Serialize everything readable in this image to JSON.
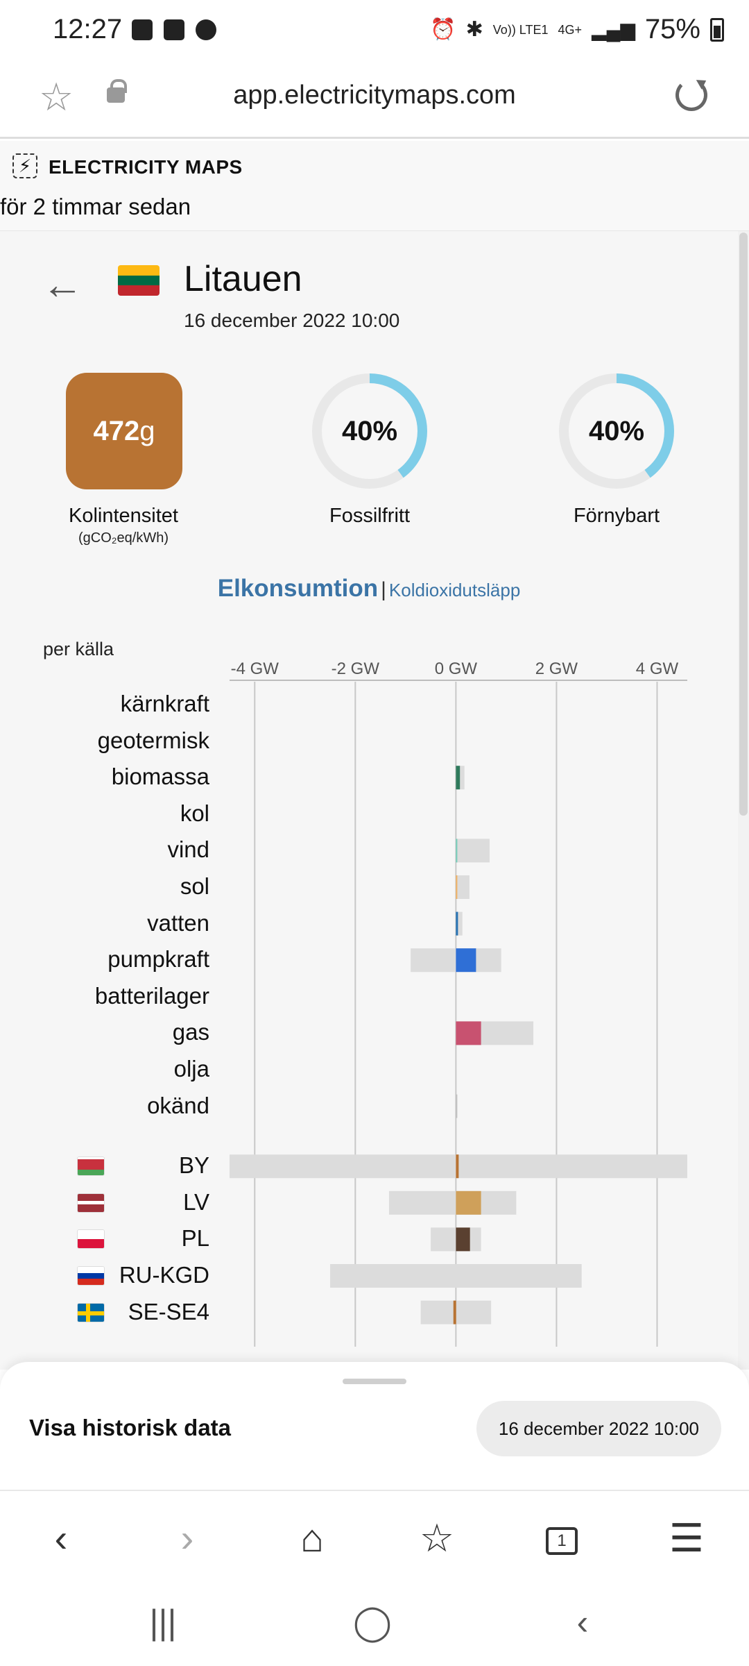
{
  "status_bar": {
    "time": "12:27",
    "network": "Vo)) LTE1",
    "network_type": "4G+",
    "battery": "75%"
  },
  "url_bar": {
    "url": "app.electricitymaps.com"
  },
  "app_header": {
    "brand": "ELECTRICITY MAPS",
    "updated": "för 2 timmar sedan"
  },
  "zone": {
    "name": "Litauen",
    "datetime": "16 december 2022 10:00",
    "flag_colors": [
      "#FDB913",
      "#006A44",
      "#C1272D"
    ]
  },
  "metrics": {
    "carbon_intensity": {
      "value": "472",
      "unit": "g",
      "label": "Kolintensitet",
      "sublabel": "(gCO₂eq/kWh)",
      "color": "#b87333"
    },
    "fossil_free": {
      "value": "40%",
      "fraction": 0.4,
      "label": "Fossilfritt"
    },
    "renewable": {
      "value": "40%",
      "fraction": 0.4,
      "label": "Förnybart"
    },
    "ring_color": "#7ecde8",
    "ring_track": "#e8e8e8"
  },
  "tabs": {
    "active": "Elkonsumtion",
    "separator": "|",
    "inactive": "Koldioxidutsläpp"
  },
  "chart_header": "per källa",
  "chart_data": {
    "type": "bar",
    "orientation": "horizontal",
    "xlabel": "",
    "ylabel": "",
    "x_unit": "GW",
    "xlim": [
      -4.5,
      4.6
    ],
    "x_ticks": [
      -4,
      -2,
      0,
      2,
      4
    ],
    "x_tick_labels": [
      "-4 GW",
      "-2 GW",
      "0 GW",
      "2 GW",
      "4 GW"
    ],
    "grid": true,
    "categories": [
      "kärnkraft",
      "geotermisk",
      "biomassa",
      "kol",
      "vind",
      "sol",
      "vatten",
      "pumpkraft",
      "batterilager",
      "gas",
      "olja",
      "okänd"
    ],
    "production": [
      0,
      0,
      0.08,
      0,
      0,
      0,
      0.03,
      0.4,
      0,
      0.5,
      0,
      0
    ],
    "capacity_range": [
      [
        0,
        0
      ],
      [
        0,
        0
      ],
      [
        0,
        0.17
      ],
      [
        0,
        0
      ],
      [
        0,
        0.67
      ],
      [
        0,
        0.27
      ],
      [
        0,
        0.13
      ],
      [
        -0.9,
        0.9
      ],
      [
        0,
        0
      ],
      [
        0,
        1.54
      ],
      [
        0,
        0
      ],
      [
        0,
        0.01
      ]
    ],
    "colors": [
      "#ae3f79",
      "#fbb36a",
      "#2f7a5c",
      "#333333",
      "#74cdb9",
      "#f0b060",
      "#2772b2",
      "#2f6fd6",
      "#b0b0b0",
      "#c85270",
      "#6a4c4c",
      "#bfbfbf"
    ],
    "exchanges": {
      "categories": [
        "BY",
        "LV",
        "PL",
        "RU-KGD",
        "SE-SE4"
      ],
      "flows": [
        0.05,
        0.5,
        0.28,
        0,
        -0.05
      ],
      "capacity_range": [
        [
          -4.5,
          4.6
        ],
        [
          -1.33,
          1.2
        ],
        [
          -0.5,
          0.5
        ],
        [
          -2.5,
          2.5
        ],
        [
          -0.7,
          0.7
        ]
      ],
      "colors": [
        "#b87333",
        "#cfa05a",
        "#5a4030",
        "#999999",
        "#b87333"
      ],
      "capacity_color": "#dcdcdc",
      "flags": [
        [
          "#ffffff",
          "#c8313e",
          "#4aa657"
        ],
        [
          "#9e3039",
          "#ffffff",
          "#9e3039"
        ],
        [
          "#ffffff",
          "#dc143c"
        ],
        [
          "#ffffff",
          "#0039a6",
          "#d52b1e"
        ],
        [
          "#006aa7",
          "#fecc00"
        ]
      ]
    }
  },
  "bottom_sheet": {
    "title": "Visa historisk data",
    "date": "16 december 2022 10:00"
  },
  "browser_nav": {
    "back": "‹",
    "forward": "›",
    "home": "⌂",
    "bookmarks": "☆",
    "tabs_count": "1",
    "menu": "☰"
  },
  "system_nav": {
    "recents": "|||",
    "home": "◯",
    "back": "‹"
  }
}
